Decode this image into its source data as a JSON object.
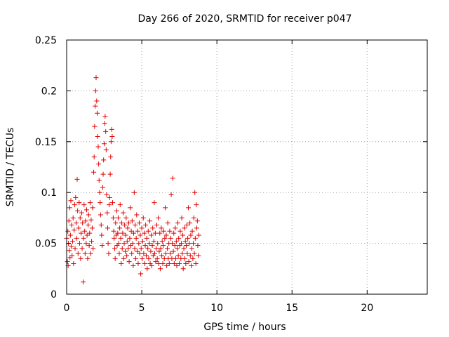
{
  "chart_data": {
    "type": "scatter",
    "title": "Day 266 of 2020, SRMTID for receiver p047",
    "xlabel": "GPS time / hours",
    "ylabel": "SRMTID / TECUs",
    "xlim": [
      0,
      24
    ],
    "ylim": [
      0,
      0.25
    ],
    "x_ticks": [
      0,
      5,
      10,
      15,
      20
    ],
    "x_tick_labels": [
      "0",
      "5",
      "10",
      "15",
      "20"
    ],
    "y_ticks": [
      0,
      0.05,
      0.1,
      0.15,
      0.2,
      0.25
    ],
    "y_tick_labels": [
      "0",
      "0.05",
      "0.1",
      "0.15",
      "0.2",
      "0.25"
    ],
    "grid": true,
    "marker": "+",
    "color": "#e00000",
    "series": [
      {
        "name": "p047",
        "points": [
          [
            0.0,
            0.055
          ],
          [
            0.05,
            0.032
          ],
          [
            0.08,
            0.062
          ],
          [
            0.1,
            0.028
          ],
          [
            0.12,
            0.05
          ],
          [
            0.15,
            0.072
          ],
          [
            0.18,
            0.043
          ],
          [
            0.2,
            0.085
          ],
          [
            0.22,
            0.036
          ],
          [
            0.25,
            0.058
          ],
          [
            0.28,
            0.092
          ],
          [
            0.3,
            0.047
          ],
          [
            0.33,
            0.068
          ],
          [
            0.36,
            0.038
          ],
          [
            0.4,
            0.052
          ],
          [
            0.43,
            0.075
          ],
          [
            0.46,
            0.03
          ],
          [
            0.5,
            0.063
          ],
          [
            0.53,
            0.088
          ],
          [
            0.56,
            0.045
          ],
          [
            0.6,
            0.095
          ],
          [
            0.63,
            0.07
          ],
          [
            0.66,
            0.055
          ],
          [
            0.7,
            0.113
          ],
          [
            0.73,
            0.082
          ],
          [
            0.76,
            0.04
          ],
          [
            0.8,
            0.065
          ],
          [
            0.83,
            0.09
          ],
          [
            0.86,
            0.05
          ],
          [
            0.9,
            0.075
          ],
          [
            0.93,
            0.035
          ],
          [
            0.96,
            0.06
          ],
          [
            1.0,
            0.08
          ],
          [
            1.03,
            0.045
          ],
          [
            1.06,
            0.07
          ],
          [
            1.1,
            0.012
          ],
          [
            1.13,
            0.055
          ],
          [
            1.16,
            0.088
          ],
          [
            1.2,
            0.062
          ],
          [
            1.23,
            0.04
          ],
          [
            1.26,
            0.072
          ],
          [
            1.3,
            0.05
          ],
          [
            1.33,
            0.083
          ],
          [
            1.36,
            0.058
          ],
          [
            1.4,
            0.035
          ],
          [
            1.43,
            0.068
          ],
          [
            1.46,
            0.078
          ],
          [
            1.5,
            0.048
          ],
          [
            1.53,
            0.06
          ],
          [
            1.56,
            0.09
          ],
          [
            1.6,
            0.04
          ],
          [
            1.63,
            0.073
          ],
          [
            1.66,
            0.052
          ],
          [
            1.7,
            0.065
          ],
          [
            1.73,
            0.085
          ],
          [
            1.76,
            0.045
          ],
          [
            1.8,
            0.12
          ],
          [
            1.83,
            0.135
          ],
          [
            1.86,
            0.165
          ],
          [
            1.9,
            0.185
          ],
          [
            1.93,
            0.2
          ],
          [
            1.96,
            0.213
          ],
          [
            2.0,
            0.19
          ],
          [
            2.03,
            0.178
          ],
          [
            2.06,
            0.155
          ],
          [
            2.1,
            0.145
          ],
          [
            2.13,
            0.128
          ],
          [
            2.16,
            0.112
          ],
          [
            2.2,
            0.1
          ],
          [
            2.23,
            0.09
          ],
          [
            2.26,
            0.078
          ],
          [
            2.3,
            0.068
          ],
          [
            2.33,
            0.058
          ],
          [
            2.36,
            0.048
          ],
          [
            2.4,
            0.105
          ],
          [
            2.43,
            0.118
          ],
          [
            2.46,
            0.132
          ],
          [
            2.5,
            0.148
          ],
          [
            2.53,
            0.168
          ],
          [
            2.56,
            0.175
          ],
          [
            2.6,
            0.16
          ],
          [
            2.63,
            0.142
          ],
          [
            2.66,
            0.098
          ],
          [
            2.7,
            0.08
          ],
          [
            2.73,
            0.065
          ],
          [
            2.76,
            0.05
          ],
          [
            2.8,
            0.04
          ],
          [
            2.83,
            0.088
          ],
          [
            2.86,
            0.095
          ],
          [
            2.9,
            0.118
          ],
          [
            2.93,
            0.135
          ],
          [
            2.96,
            0.15
          ],
          [
            3.0,
            0.162
          ],
          [
            3.03,
            0.155
          ],
          [
            3.06,
            0.09
          ],
          [
            3.1,
            0.075
          ],
          [
            3.13,
            0.062
          ],
          [
            3.16,
            0.055
          ],
          [
            3.2,
            0.045
          ],
          [
            3.23,
            0.035
          ],
          [
            3.26,
            0.07
          ],
          [
            3.3,
            0.058
          ],
          [
            3.33,
            0.082
          ],
          [
            3.36,
            0.048
          ],
          [
            3.4,
            0.06
          ],
          [
            3.43,
            0.075
          ],
          [
            3.46,
            0.05
          ],
          [
            3.5,
            0.04
          ],
          [
            3.53,
            0.065
          ],
          [
            3.56,
            0.088
          ],
          [
            3.6,
            0.055
          ],
          [
            3.63,
            0.03
          ],
          [
            3.66,
            0.07
          ],
          [
            3.7,
            0.045
          ],
          [
            3.73,
            0.06
          ],
          [
            3.76,
            0.08
          ],
          [
            3.8,
            0.035
          ],
          [
            3.83,
            0.05
          ],
          [
            3.86,
            0.068
          ],
          [
            3.9,
            0.042
          ],
          [
            3.93,
            0.058
          ],
          [
            3.96,
            0.075
          ],
          [
            4.0,
            0.038
          ],
          [
            4.03,
            0.052
          ],
          [
            4.06,
            0.065
          ],
          [
            4.1,
            0.045
          ],
          [
            4.13,
            0.07
          ],
          [
            4.16,
            0.032
          ],
          [
            4.2,
            0.055
          ],
          [
            4.23,
            0.085
          ],
          [
            4.26,
            0.048
          ],
          [
            4.3,
            0.062
          ],
          [
            4.33,
            0.04
          ],
          [
            4.36,
            0.072
          ],
          [
            4.4,
            0.05
          ],
          [
            4.43,
            0.028
          ],
          [
            4.46,
            0.06
          ],
          [
            4.5,
            0.1
          ],
          [
            4.53,
            0.045
          ],
          [
            4.56,
            0.068
          ],
          [
            4.6,
            0.035
          ],
          [
            4.63,
            0.055
          ],
          [
            4.66,
            0.078
          ],
          [
            4.7,
            0.042
          ],
          [
            4.73,
            0.062
          ],
          [
            4.76,
            0.03
          ],
          [
            4.8,
            0.05
          ],
          [
            4.83,
            0.07
          ],
          [
            4.86,
            0.04
          ],
          [
            4.9,
            0.058
          ],
          [
            4.93,
            0.02
          ],
          [
            4.96,
            0.045
          ],
          [
            5.0,
            0.065
          ],
          [
            5.03,
            0.035
          ],
          [
            5.06,
            0.052
          ],
          [
            5.1,
            0.075
          ],
          [
            5.13,
            0.04
          ],
          [
            5.16,
            0.06
          ],
          [
            5.2,
            0.03
          ],
          [
            5.23,
            0.048
          ],
          [
            5.26,
            0.068
          ],
          [
            5.3,
            0.038
          ],
          [
            5.33,
            0.055
          ],
          [
            5.36,
            0.025
          ],
          [
            5.4,
            0.045
          ],
          [
            5.43,
            0.062
          ],
          [
            5.46,
            0.035
          ],
          [
            5.5,
            0.05
          ],
          [
            5.53,
            0.072
          ],
          [
            5.56,
            0.03
          ],
          [
            5.6,
            0.042
          ],
          [
            5.63,
            0.058
          ],
          [
            5.66,
            0.028
          ],
          [
            5.7,
            0.048
          ],
          [
            5.73,
            0.065
          ],
          [
            5.76,
            0.038
          ],
          [
            5.8,
            0.052
          ],
          [
            5.83,
            0.09
          ],
          [
            5.86,
            0.04
          ],
          [
            5.9,
            0.06
          ],
          [
            5.93,
            0.032
          ],
          [
            5.96,
            0.045
          ],
          [
            6.0,
            0.068
          ],
          [
            6.03,
            0.035
          ],
          [
            6.06,
            0.05
          ],
          [
            6.1,
            0.075
          ],
          [
            6.13,
            0.03
          ],
          [
            6.16,
            0.042
          ],
          [
            6.2,
            0.06
          ],
          [
            6.23,
            0.025
          ],
          [
            6.26,
            0.045
          ],
          [
            6.3,
            0.065
          ],
          [
            6.33,
            0.038
          ],
          [
            6.36,
            0.052
          ],
          [
            6.4,
            0.03
          ],
          [
            6.43,
            0.048
          ],
          [
            6.46,
            0.062
          ],
          [
            6.5,
            0.035
          ],
          [
            6.53,
            0.055
          ],
          [
            6.56,
            0.085
          ],
          [
            6.6,
            0.04
          ],
          [
            6.63,
            0.058
          ],
          [
            6.66,
            0.028
          ],
          [
            6.7,
            0.045
          ],
          [
            6.73,
            0.07
          ],
          [
            6.76,
            0.035
          ],
          [
            6.8,
            0.05
          ],
          [
            6.83,
            0.03
          ],
          [
            6.86,
            0.062
          ],
          [
            6.9,
            0.04
          ],
          [
            6.93,
            0.055
          ],
          [
            6.96,
            0.098
          ],
          [
            7.0,
            0.035
          ],
          [
            7.03,
            0.05
          ],
          [
            7.06,
            0.114
          ],
          [
            7.1,
            0.042
          ],
          [
            7.13,
            0.06
          ],
          [
            7.16,
            0.03
          ],
          [
            7.2,
            0.048
          ],
          [
            7.23,
            0.065
          ],
          [
            7.26,
            0.035
          ],
          [
            7.3,
            0.052
          ],
          [
            7.33,
            0.028
          ],
          [
            7.36,
            0.045
          ],
          [
            7.4,
            0.07
          ],
          [
            7.43,
            0.038
          ],
          [
            7.46,
            0.055
          ],
          [
            7.5,
            0.03
          ],
          [
            7.53,
            0.048
          ],
          [
            7.56,
            0.062
          ],
          [
            7.6,
            0.035
          ],
          [
            7.63,
            0.05
          ],
          [
            7.66,
            0.075
          ],
          [
            7.7,
            0.04
          ],
          [
            7.73,
            0.058
          ],
          [
            7.76,
            0.025
          ],
          [
            7.8,
            0.045
          ],
          [
            7.83,
            0.065
          ],
          [
            7.86,
            0.035
          ],
          [
            7.9,
            0.052
          ],
          [
            7.93,
            0.03
          ],
          [
            7.96,
            0.048
          ],
          [
            8.0,
            0.068
          ],
          [
            8.03,
            0.04
          ],
          [
            8.06,
            0.055
          ],
          [
            8.1,
            0.085
          ],
          [
            8.13,
            0.032
          ],
          [
            8.16,
            0.05
          ],
          [
            8.2,
            0.07
          ],
          [
            8.23,
            0.038
          ],
          [
            8.26,
            0.058
          ],
          [
            8.3,
            0.028
          ],
          [
            8.33,
            0.045
          ],
          [
            8.36,
            0.062
          ],
          [
            8.4,
            0.035
          ],
          [
            8.43,
            0.05
          ],
          [
            8.46,
            0.075
          ],
          [
            8.5,
            0.04
          ],
          [
            8.53,
            0.1
          ],
          [
            8.56,
            0.055
          ],
          [
            8.6,
            0.03
          ],
          [
            8.63,
            0.088
          ],
          [
            8.66,
            0.065
          ],
          [
            8.7,
            0.072
          ],
          [
            8.73,
            0.048
          ],
          [
            8.76,
            0.038
          ],
          [
            8.8,
            0.058
          ]
        ]
      }
    ]
  }
}
